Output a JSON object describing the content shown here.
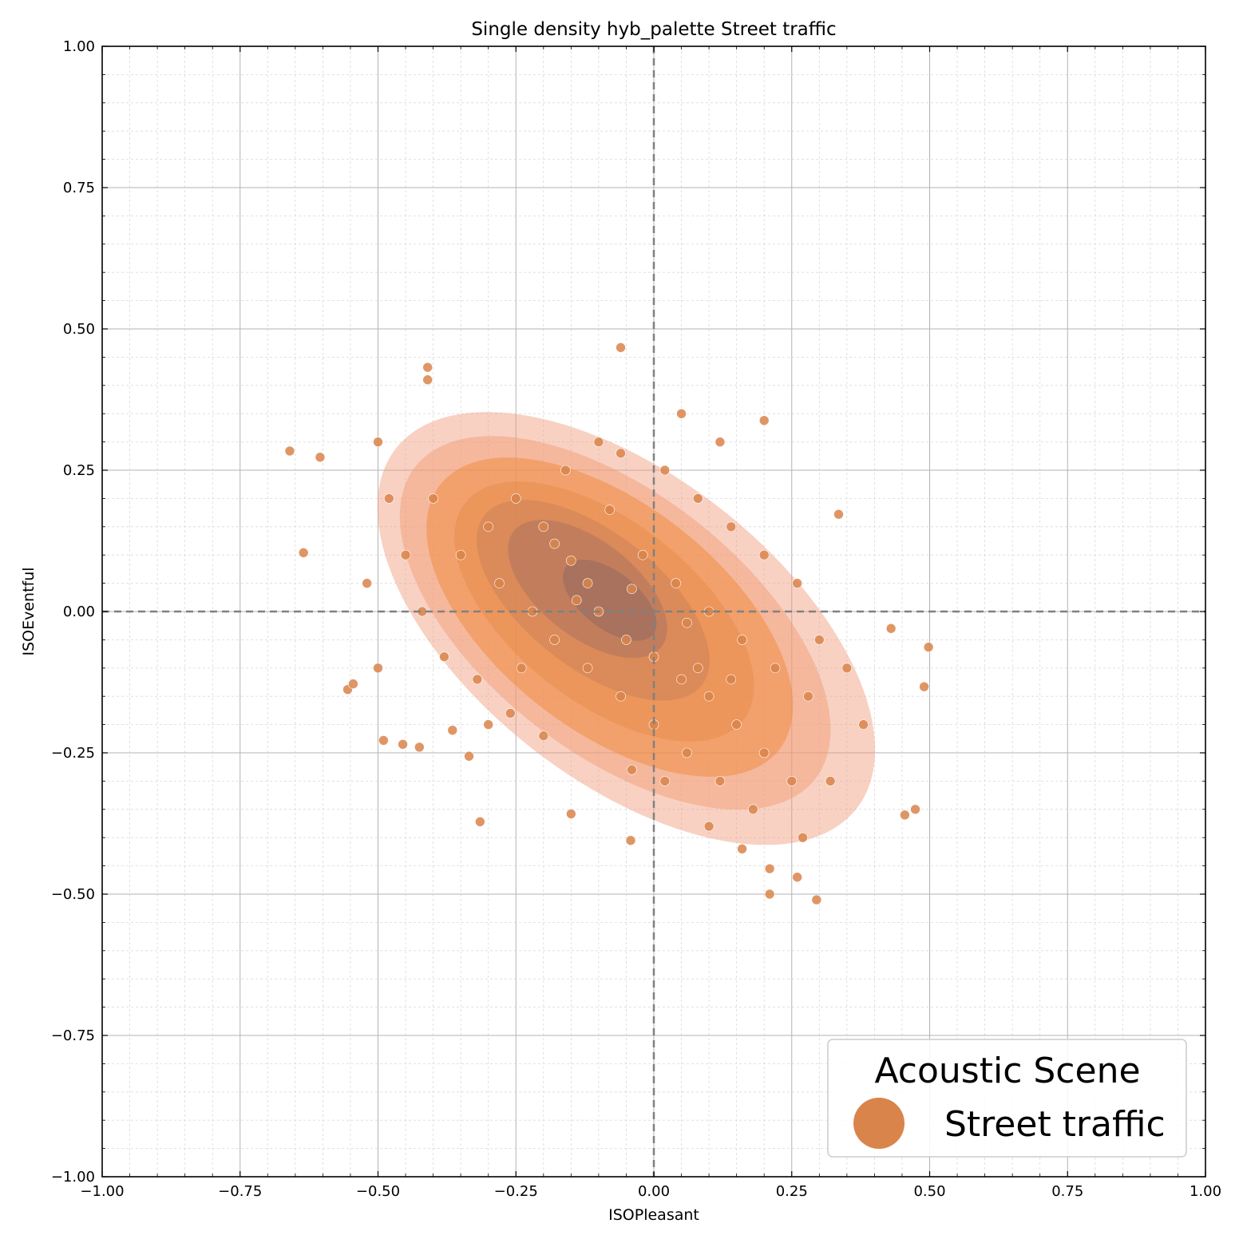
{
  "chart_data": {
    "type": "scatter",
    "title": "Single density hyb_palette Street traffic",
    "xlabel": "ISOPleasant",
    "ylabel": "ISOEventful",
    "xlim": [
      -1.0,
      1.0
    ],
    "ylim": [
      -1.0,
      1.0
    ],
    "x_ticks": [
      -1.0,
      -0.75,
      -0.5,
      -0.25,
      0.0,
      0.25,
      0.5,
      0.75,
      1.0
    ],
    "y_ticks": [
      -1.0,
      -0.75,
      -0.5,
      -0.25,
      0.0,
      0.25,
      0.5,
      0.75,
      1.0
    ],
    "x_tick_labels": [
      "−1.00",
      "−0.75",
      "−0.50",
      "−0.25",
      "0.00",
      "0.25",
      "0.50",
      "0.75",
      "1.00"
    ],
    "y_tick_labels": [
      "−1.00",
      "−0.75",
      "−0.50",
      "−0.25",
      "0.00",
      "0.25",
      "0.50",
      "0.75",
      "1.00"
    ],
    "grid": true,
    "minor_grid": true,
    "zero_lines": true,
    "legend": {
      "title": "Acoustic Scene",
      "placement": "lower-right",
      "entries": [
        {
          "label": "Street traffic",
          "color": "#d9844a"
        }
      ]
    },
    "series": [
      {
        "name": "Street traffic",
        "color": "#d9844a",
        "density_color": "#f08a3c",
        "points": [
          [
            -0.06,
            0.467
          ],
          [
            -0.41,
            0.432
          ],
          [
            -0.41,
            0.41
          ],
          [
            -0.66,
            0.284
          ],
          [
            -0.605,
            0.273
          ],
          [
            -0.635,
            0.104
          ],
          [
            0.335,
            0.172
          ],
          [
            0.2,
            0.338
          ],
          [
            0.43,
            -0.03
          ],
          [
            0.498,
            -0.063
          ],
          [
            0.49,
            -0.133
          ],
          [
            0.474,
            -0.35
          ],
          [
            0.455,
            -0.36
          ],
          [
            -0.555,
            -0.138
          ],
          [
            -0.545,
            -0.128
          ],
          [
            -0.49,
            -0.228
          ],
          [
            -0.455,
            -0.235
          ],
          [
            -0.425,
            -0.24
          ],
          [
            -0.365,
            -0.21
          ],
          [
            -0.335,
            -0.256
          ],
          [
            -0.315,
            -0.372
          ],
          [
            -0.15,
            -0.358
          ],
          [
            -0.042,
            -0.405
          ],
          [
            0.21,
            -0.455
          ],
          [
            0.26,
            -0.47
          ],
          [
            0.295,
            -0.51
          ],
          [
            0.21,
            -0.5
          ],
          [
            -0.18,
            0.12
          ],
          [
            -0.15,
            0.09
          ],
          [
            -0.12,
            0.05
          ],
          [
            -0.2,
            0.15
          ],
          [
            -0.1,
            0.0
          ],
          [
            -0.05,
            -0.05
          ],
          [
            0.0,
            -0.08
          ],
          [
            0.05,
            -0.12
          ],
          [
            0.1,
            -0.15
          ],
          [
            0.15,
            -0.2
          ],
          [
            0.2,
            -0.25
          ],
          [
            0.25,
            -0.3
          ],
          [
            -0.25,
            0.2
          ],
          [
            -0.3,
            0.15
          ],
          [
            -0.35,
            0.1
          ],
          [
            -0.28,
            0.05
          ],
          [
            -0.22,
            0.0
          ],
          [
            -0.18,
            -0.05
          ],
          [
            -0.12,
            -0.1
          ],
          [
            -0.06,
            -0.15
          ],
          [
            0.0,
            -0.2
          ],
          [
            0.06,
            -0.25
          ],
          [
            0.12,
            -0.3
          ],
          [
            0.18,
            -0.35
          ],
          [
            -0.08,
            0.18
          ],
          [
            -0.02,
            0.1
          ],
          [
            0.04,
            0.05
          ],
          [
            0.1,
            0.0
          ],
          [
            0.16,
            -0.05
          ],
          [
            0.22,
            -0.1
          ],
          [
            0.28,
            -0.15
          ],
          [
            -0.4,
            0.2
          ],
          [
            -0.45,
            0.1
          ],
          [
            -0.42,
            0.0
          ],
          [
            -0.38,
            -0.08
          ],
          [
            -0.32,
            -0.12
          ],
          [
            -0.26,
            -0.18
          ],
          [
            -0.2,
            -0.22
          ],
          [
            0.02,
            0.25
          ],
          [
            0.08,
            0.2
          ],
          [
            0.14,
            0.15
          ],
          [
            0.2,
            0.1
          ],
          [
            0.26,
            0.05
          ],
          [
            0.3,
            -0.05
          ],
          [
            0.35,
            -0.1
          ],
          [
            0.38,
            -0.2
          ],
          [
            0.32,
            -0.3
          ],
          [
            0.27,
            -0.4
          ],
          [
            -0.5,
            0.3
          ],
          [
            -0.48,
            0.2
          ],
          [
            -0.52,
            0.05
          ],
          [
            -0.5,
            -0.1
          ],
          [
            -0.1,
            0.3
          ],
          [
            -0.16,
            0.25
          ],
          [
            -0.06,
            0.28
          ],
          [
            0.12,
            0.3
          ],
          [
            0.05,
            0.35
          ],
          [
            -0.3,
            -0.2
          ],
          [
            -0.24,
            -0.1
          ],
          [
            -0.14,
            0.02
          ],
          [
            -0.04,
            0.04
          ],
          [
            0.06,
            -0.02
          ],
          [
            0.08,
            -0.1
          ],
          [
            0.14,
            -0.12
          ],
          [
            0.02,
            -0.3
          ],
          [
            -0.04,
            -0.28
          ],
          [
            0.1,
            -0.38
          ],
          [
            0.16,
            -0.42
          ]
        ]
      }
    ]
  }
}
